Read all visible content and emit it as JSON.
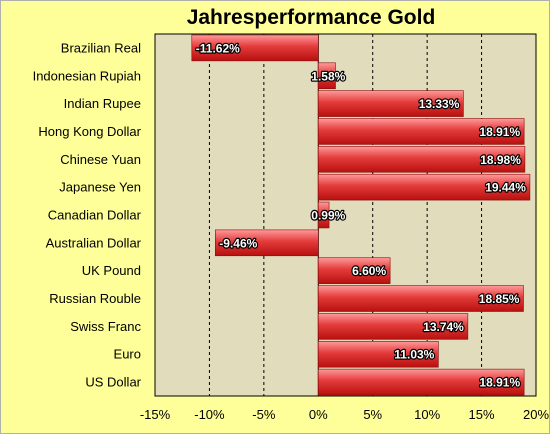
{
  "chart_data": {
    "type": "bar",
    "orientation": "horizontal",
    "title": "Jahresperformance Gold",
    "categories": [
      "Brazilian Real",
      "Indonesian Rupiah",
      "Indian Rupee",
      "Hong Kong Dollar",
      "Chinese Yuan",
      "Japanese Yen",
      "Canadian Dollar",
      "Australian Dollar",
      "UK Pound",
      "Russian Rouble",
      "Swiss Franc",
      "Euro",
      "US Dollar"
    ],
    "values": [
      -11.62,
      1.58,
      13.33,
      18.91,
      18.98,
      19.44,
      0.99,
      -9.46,
      6.6,
      18.85,
      13.74,
      11.03,
      18.91
    ],
    "data_labels": [
      "-11.62%",
      "1.58%",
      "13.33%",
      "18.91%",
      "18.98%",
      "19.44%",
      "0.99%",
      "-9.46%",
      "6.60%",
      "18.85%",
      "13.74%",
      "11.03%",
      "18.91%"
    ],
    "xticks": [
      -15,
      -10,
      -5,
      0,
      5,
      10,
      15,
      20
    ],
    "xtick_labels": [
      "-15%",
      "-10%",
      "-5%",
      "0%",
      "5%",
      "10%",
      "15%",
      "20%"
    ],
    "xlim": [
      -15,
      20
    ],
    "grid": "vertical dashed",
    "legend": "none",
    "colors": {
      "background": "#ffff99",
      "plot_area": "#e0dcbc",
      "bar": "#d8201f",
      "bar_highlight": "#ff8a8a",
      "grid": "#000000"
    }
  }
}
